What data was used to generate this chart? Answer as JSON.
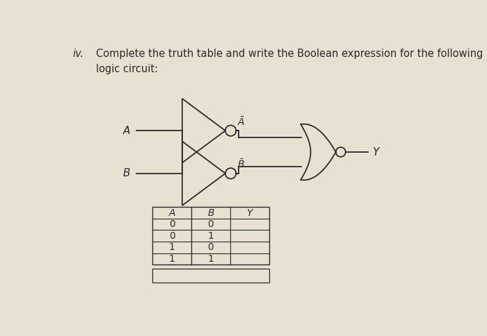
{
  "background_color": "#e8e0d0",
  "title_roman": "iv.",
  "title_text_line1": "Complete the truth table and write the Boolean expression for the following",
  "title_text_line2": "logic circuit:",
  "font_size_title": 10.5,
  "font_size_labels": 10,
  "font_size_table": 10,
  "table_headers": [
    "A",
    "B",
    "Y"
  ],
  "table_rows": [
    [
      "0",
      "0",
      ""
    ],
    [
      "0",
      "1",
      ""
    ],
    [
      "1",
      "0",
      ""
    ],
    [
      "1",
      "1",
      ""
    ]
  ],
  "label_A": "A",
  "label_B": "B",
  "label_Y": "Y"
}
